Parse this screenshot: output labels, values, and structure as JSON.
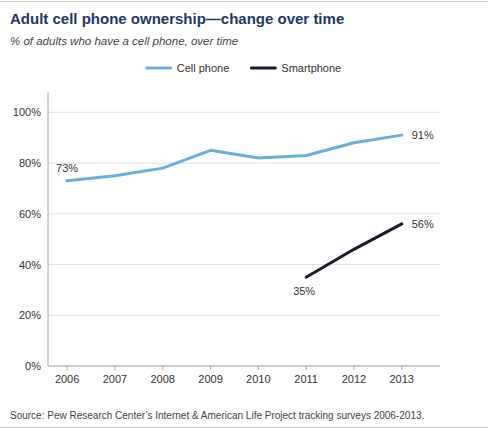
{
  "chart_data": {
    "type": "line",
    "title": "Adult cell phone ownership—change over time",
    "subtitle": "% of adults who have a cell phone, over time",
    "source": "Source: Pew Research Center’s Internet & American Life Project tracking surveys 2006-2013.",
    "x": [
      2006,
      2007,
      2008,
      2009,
      2010,
      2011,
      2012,
      2013
    ],
    "series": [
      {
        "name": "Cell phone",
        "color": "#6baed6",
        "values": [
          73,
          75,
          78,
          85,
          82,
          83,
          88,
          91
        ]
      },
      {
        "name": "Smartphone",
        "color": "#1a1a2e",
        "values": [
          null,
          null,
          null,
          null,
          null,
          35,
          46,
          56
        ]
      }
    ],
    "annotations": [
      {
        "x": 2006,
        "y": 73,
        "text": "73%"
      },
      {
        "x": 2013,
        "y": 91,
        "text": "91%"
      },
      {
        "x": 2011,
        "y": 35,
        "text": "35%"
      },
      {
        "x": 2013,
        "y": 56,
        "text": "56%"
      }
    ],
    "xlim": [
      2005.6,
      2013.8
    ],
    "ylim": [
      0,
      108
    ],
    "xticks": [
      2006,
      2007,
      2008,
      2009,
      2010,
      2011,
      2012,
      2013
    ],
    "yticks": [
      {
        "value": 0,
        "label": "0%"
      },
      {
        "value": 20,
        "label": "20%"
      },
      {
        "value": 40,
        "label": "40%"
      },
      {
        "value": 60,
        "label": "60%"
      },
      {
        "value": 80,
        "label": "80%"
      },
      {
        "value": 100,
        "label": "100%"
      }
    ],
    "grid": true,
    "legend": "top"
  }
}
